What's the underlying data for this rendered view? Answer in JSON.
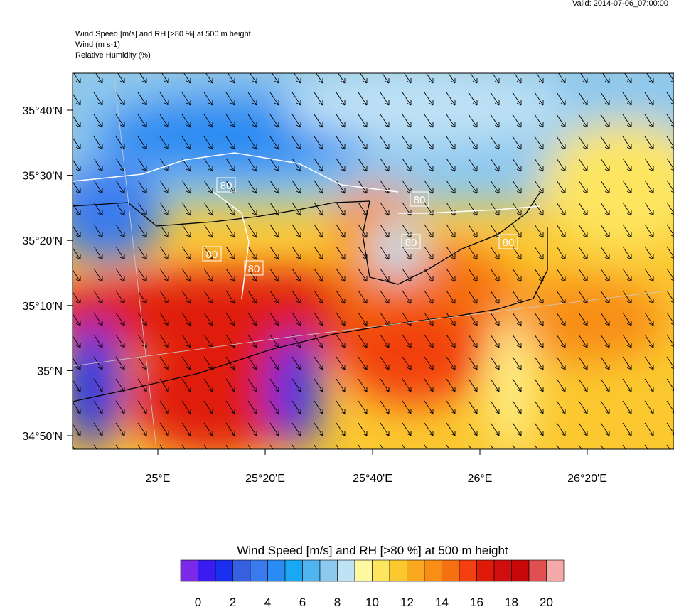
{
  "valid": "Valid: 2014-07-06_07:00:00",
  "header": {
    "title": "Wind Speed [m/s] and RH [>80 %] at 500 m height",
    "wind": "Wind   (m s-1)",
    "rh": "Relative Humidity   (%)"
  },
  "map": {
    "lat_labels": [
      "35°40'N",
      "35°30'N",
      "35°20'N",
      "35°10'N",
      "35°N",
      "34°50'N"
    ],
    "lon_labels": [
      "25°E",
      "25°20'E",
      "25°40'E",
      "26°E",
      "26°20'E"
    ],
    "contour_labels": [
      "80",
      "80",
      "80",
      "80",
      "80",
      "80"
    ]
  },
  "colorbar": {
    "title": "Wind Speed [m/s] and RH [>80 %] at 500 m height",
    "colors": [
      "#7b2be8",
      "#3a1bf0",
      "#1a2ff0",
      "#3760e0",
      "#3a7aee",
      "#2a8cf2",
      "#1aa8f5",
      "#50b4ee",
      "#8dc8ee",
      "#bfe2f5",
      "#fff8a0",
      "#fde560",
      "#fbc830",
      "#faa820",
      "#f88e18",
      "#f57010",
      "#f24010",
      "#e01a08",
      "#d00e0e",
      "#c80808",
      "#e05050",
      "#f5aaaa"
    ],
    "labels": [
      0,
      2,
      4,
      6,
      8,
      10,
      12,
      14,
      16,
      18,
      20
    ]
  }
}
